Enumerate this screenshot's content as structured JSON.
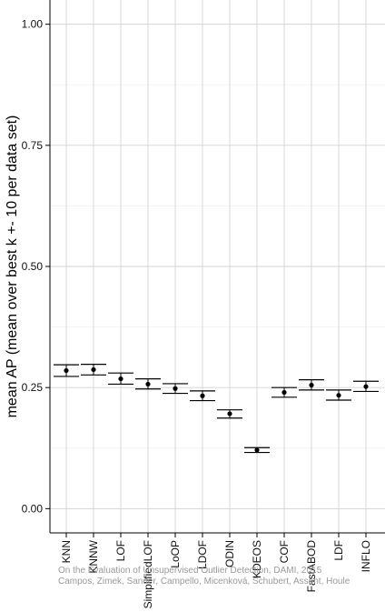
{
  "chart_data": {
    "type": "errorbar",
    "ylabel": "mean AP (mean over best k +- 10 per data set)",
    "xlabel": "",
    "ylim": [
      -0.05,
      1.05
    ],
    "yticks": [
      "0.00",
      "0.25",
      "0.50",
      "0.75",
      "1.00"
    ],
    "grid": true,
    "categories": [
      "KNN",
      "KNNW",
      "LOF",
      "SimplifiedLOF",
      "LoOP",
      "LDOF",
      "ODIN",
      "KDEOS",
      "COF",
      "FastABOD",
      "LDF",
      "INFLO"
    ],
    "series": [
      {
        "mean": [
          0.285,
          0.287,
          0.268,
          0.257,
          0.248,
          0.233,
          0.196,
          0.121,
          0.24,
          0.255,
          0.234,
          0.252
        ],
        "lower": [
          0.273,
          0.276,
          0.257,
          0.247,
          0.238,
          0.223,
          0.187,
          0.116,
          0.23,
          0.245,
          0.224,
          0.242
        ],
        "upper": [
          0.297,
          0.298,
          0.28,
          0.268,
          0.258,
          0.243,
          0.204,
          0.126,
          0.25,
          0.266,
          0.245,
          0.263
        ]
      }
    ]
  },
  "watermark": {
    "line1": "On the Evaluation of Unsupervised Outlier Detection, DAMI, 2015",
    "line2": "Campos, Zimek, Sander, Campello, Micenková, Schubert, Assent, Houle"
  }
}
